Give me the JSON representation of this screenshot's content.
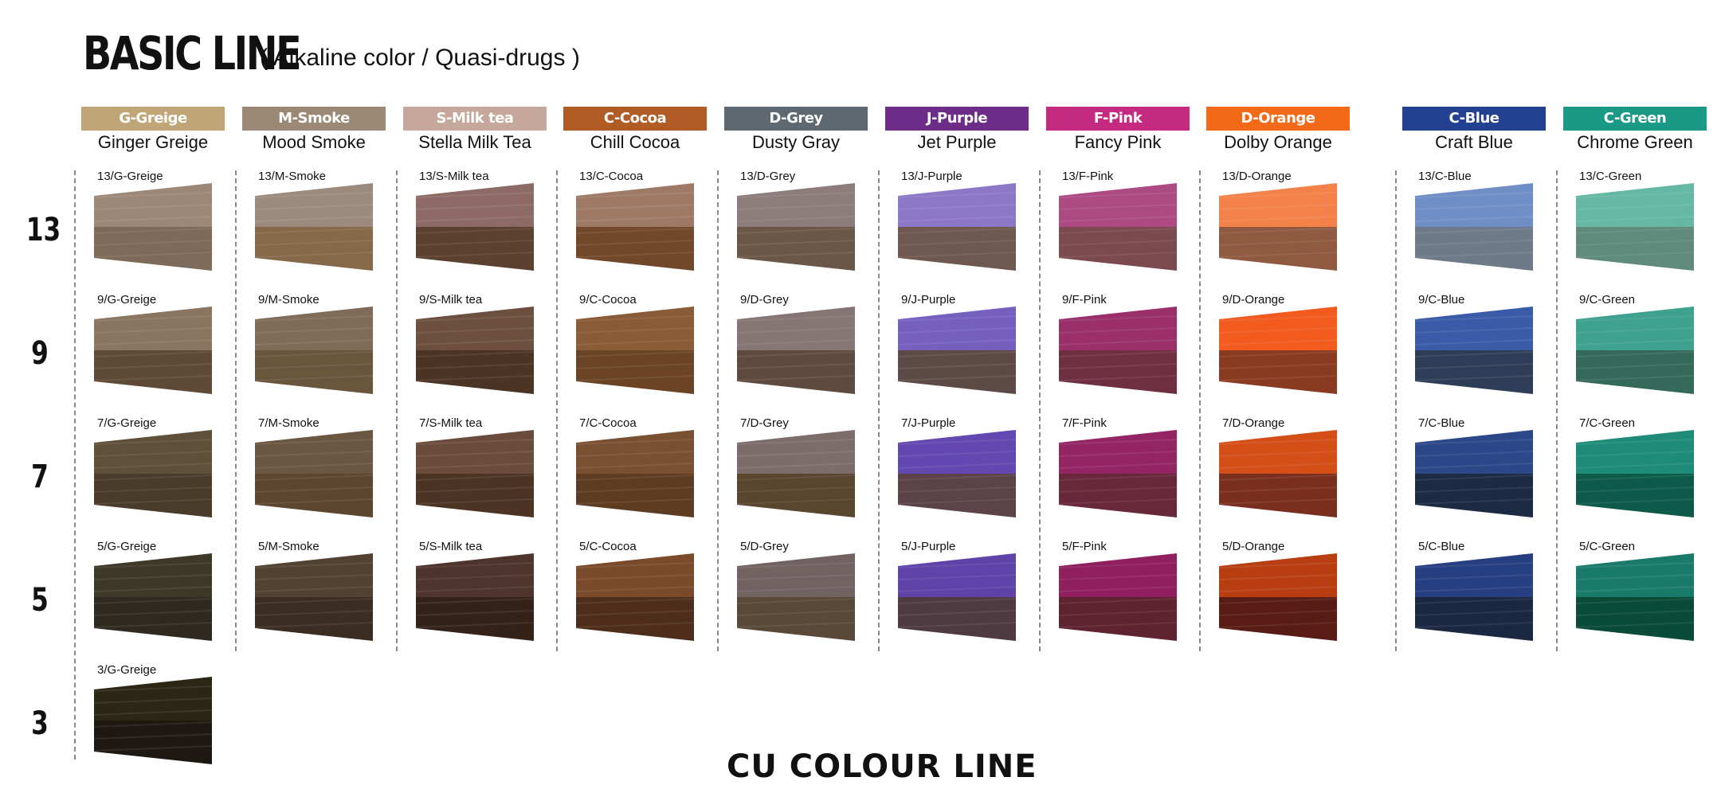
{
  "title": "BASIC LINE",
  "subtitle": "( Alkaline color / Quasi-drugs )",
  "footer_partial": "CU COLOUR LINE",
  "levels": [
    "13",
    "9",
    "7",
    "5",
    "3"
  ],
  "columns": [
    {
      "tag": "G-Greige",
      "name": "Ginger Greige",
      "tag_color": "#c0a677",
      "swatches": [
        {
          "label": "13/G-Greige",
          "top": "#9d8878",
          "bottom": "#7e6a58"
        },
        {
          "label": "9/G-Greige",
          "top": "#8a7660",
          "bottom": "#5e4a37"
        },
        {
          "label": "7/G-Greige",
          "top": "#5f5039",
          "bottom": "#4a3c2a"
        },
        {
          "label": "5/G-Greige",
          "top": "#3e3828",
          "bottom": "#2f2a1f"
        },
        {
          "label": "3/G-Greige",
          "top": "#2c2615",
          "bottom": "#1e1812"
        }
      ]
    },
    {
      "tag": "M-Smoke",
      "name": "Mood Smoke",
      "tag_color": "#9b8875",
      "swatches": [
        {
          "label": "13/M-Smoke",
          "top": "#9c8b7c",
          "bottom": "#86694a"
        },
        {
          "label": "9/M-Smoke",
          "top": "#7f6b57",
          "bottom": "#6a553d"
        },
        {
          "label": "7/M-Smoke",
          "top": "#6b5641",
          "bottom": "#5c4630"
        },
        {
          "label": "5/M-Smoke",
          "top": "#524232",
          "bottom": "#3b2d22"
        }
      ]
    },
    {
      "tag": "S-Milk tea",
      "name": "Stella Milk Tea",
      "tag_color": "#c5a89b",
      "swatches": [
        {
          "label": "13/S-Milk tea",
          "top": "#8e6a67",
          "bottom": "#5c4030"
        },
        {
          "label": "9/S-Milk tea",
          "top": "#6d4f3f",
          "bottom": "#4b3424"
        },
        {
          "label": "7/S-Milk tea",
          "top": "#6b4c3c",
          "bottom": "#4c3324"
        },
        {
          "label": "5/S-Milk tea",
          "top": "#4e342c",
          "bottom": "#342219"
        }
      ]
    },
    {
      "tag": "C-Cocoa",
      "name": "Chill Cocoa",
      "tag_color": "#b05c24",
      "swatches": [
        {
          "label": "13/C-Cocoa",
          "top": "#9e7a66",
          "bottom": "#71492a"
        },
        {
          "label": "9/C-Cocoa",
          "top": "#8a5b37",
          "bottom": "#6a4424"
        },
        {
          "label": "7/C-Cocoa",
          "top": "#7a5032",
          "bottom": "#5e3c22"
        },
        {
          "label": "5/C-Cocoa",
          "top": "#7a4a2b",
          "bottom": "#4e2d1a"
        }
      ]
    },
    {
      "tag": "D-Grey",
      "name": "Dusty Gray",
      "tag_color": "#5d6871",
      "swatches": [
        {
          "label": "13/D-Grey",
          "top": "#8c7c7c",
          "bottom": "#6b5747"
        },
        {
          "label": "9/D-Grey",
          "top": "#857575",
          "bottom": "#5f4a40"
        },
        {
          "label": "7/D-Grey",
          "top": "#7d6c6c",
          "bottom": "#5a452f"
        },
        {
          "label": "5/D-Grey",
          "top": "#726363",
          "bottom": "#5a4838"
        }
      ]
    },
    {
      "tag": "J-Purple",
      "name": "Jet Purple",
      "tag_color": "#6d2c88",
      "swatches": [
        {
          "label": "13/J-Purple",
          "top": "#8d78c8",
          "bottom": "#6e5850"
        },
        {
          "label": "9/J-Purple",
          "top": "#7560c0",
          "bottom": "#5d4a46"
        },
        {
          "label": "7/J-Purple",
          "top": "#6248b0",
          "bottom": "#5b4348"
        },
        {
          "label": "5/J-Purple",
          "top": "#6043a8",
          "bottom": "#4e3a40"
        }
      ]
    },
    {
      "tag": "F-Pink",
      "name": "Fancy Pink",
      "tag_color": "#c42a7f",
      "swatches": [
        {
          "label": "13/F-Pink",
          "top": "#ad4a84",
          "bottom": "#7a4a4e"
        },
        {
          "label": "9/F-Pink",
          "top": "#9a2f6c",
          "bottom": "#6e3040"
        },
        {
          "label": "7/F-Pink",
          "top": "#942564",
          "bottom": "#67283a"
        },
        {
          "label": "5/F-Pink",
          "top": "#8f1f5e",
          "bottom": "#5e2230"
        }
      ]
    },
    {
      "tag": "D-Orange",
      "name": "Dolby Orange",
      "tag_color": "#f26a18",
      "swatches": [
        {
          "label": "13/D-Orange",
          "top": "#f4804a",
          "bottom": "#8f5a40"
        },
        {
          "label": "9/D-Orange",
          "top": "#f25a1e",
          "bottom": "#8a3a20"
        },
        {
          "label": "7/D-Orange",
          "top": "#d44e18",
          "bottom": "#7a2f1e"
        },
        {
          "label": "5/D-Orange",
          "top": "#b83e12",
          "bottom": "#581c14"
        }
      ]
    },
    {
      "tag": "C-Blue",
      "name": "Craft Blue",
      "tag_color": "#234191",
      "swatches": [
        {
          "label": "13/C-Blue",
          "top": "#6f8ec6",
          "bottom": "#6e7a88"
        },
        {
          "label": "9/C-Blue",
          "top": "#3a5ca8",
          "bottom": "#2f3e58"
        },
        {
          "label": "7/C-Blue",
          "top": "#2c4888",
          "bottom": "#1c2b44"
        },
        {
          "label": "5/C-Blue",
          "top": "#263f80",
          "bottom": "#1a2842"
        }
      ]
    },
    {
      "tag": "C-Green",
      "name": "Chrome Green",
      "tag_color": "#1a9a86",
      "swatches": [
        {
          "label": "13/C-Green",
          "top": "#64b8a4",
          "bottom": "#5f8a7c"
        },
        {
          "label": "9/C-Green",
          "top": "#3ea28e",
          "bottom": "#356a5a"
        },
        {
          "label": "7/C-Green",
          "top": "#1e8c78",
          "bottom": "#0e5a4a"
        },
        {
          "label": "5/C-Green",
          "top": "#1a7a6a",
          "bottom": "#0a4a38"
        }
      ]
    }
  ]
}
